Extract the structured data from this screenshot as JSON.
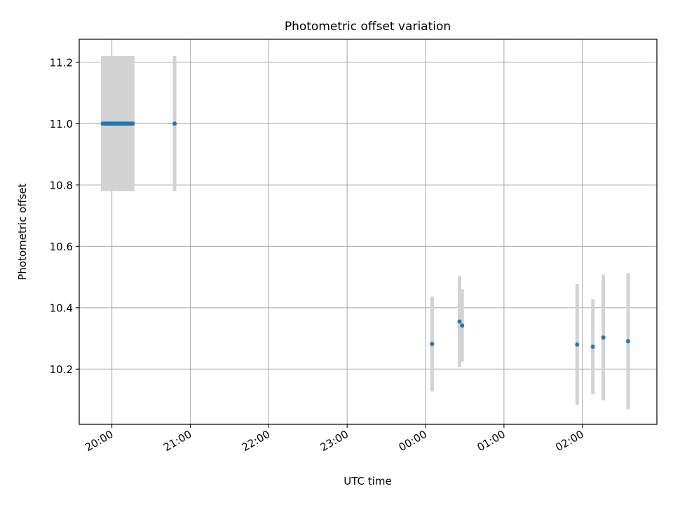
{
  "chart_data": {
    "type": "scatter",
    "title": "Photometric offset variation",
    "xlabel": "UTC time",
    "ylabel": "Photometric offset",
    "x_axis": "time",
    "xlim": [
      "19:35",
      "02:57"
    ],
    "ylim": [
      10.02,
      11.275
    ],
    "xticks": [
      "20:00",
      "21:00",
      "22:00",
      "23:00",
      "00:00",
      "01:00",
      "02:00"
    ],
    "yticks": [
      "10.2",
      "10.4",
      "10.6",
      "10.8",
      "11.0",
      "11.2"
    ],
    "grid": true,
    "colors": {
      "point": "#1f77b4",
      "errorbar": "#d3d3d3",
      "grid": "#b0b0b0",
      "frame": "#000000"
    },
    "points": [
      {
        "x": "19:53",
        "y": 11.0,
        "yerr": 0.22
      },
      {
        "x": "19:54",
        "y": 11.0,
        "yerr": 0.22
      },
      {
        "x": "19:55",
        "y": 11.0,
        "yerr": 0.22
      },
      {
        "x": "19:56",
        "y": 11.0,
        "yerr": 0.22
      },
      {
        "x": "19:57",
        "y": 11.0,
        "yerr": 0.22
      },
      {
        "x": "19:58",
        "y": 11.0,
        "yerr": 0.22
      },
      {
        "x": "19:59",
        "y": 11.0,
        "yerr": 0.22
      },
      {
        "x": "20:00",
        "y": 11.0,
        "yerr": 0.22
      },
      {
        "x": "20:01",
        "y": 11.0,
        "yerr": 0.22
      },
      {
        "x": "20:02",
        "y": 11.0,
        "yerr": 0.22
      },
      {
        "x": "20:03",
        "y": 11.0,
        "yerr": 0.22
      },
      {
        "x": "20:04",
        "y": 11.0,
        "yerr": 0.22
      },
      {
        "x": "20:05",
        "y": 11.0,
        "yerr": 0.22
      },
      {
        "x": "20:06",
        "y": 11.0,
        "yerr": 0.22
      },
      {
        "x": "20:07",
        "y": 11.0,
        "yerr": 0.22
      },
      {
        "x": "20:08",
        "y": 11.0,
        "yerr": 0.22
      },
      {
        "x": "20:09",
        "y": 11.0,
        "yerr": 0.22
      },
      {
        "x": "20:10",
        "y": 11.0,
        "yerr": 0.22
      },
      {
        "x": "20:11",
        "y": 11.0,
        "yerr": 0.22
      },
      {
        "x": "20:12",
        "y": 11.0,
        "yerr": 0.22
      },
      {
        "x": "20:13",
        "y": 11.0,
        "yerr": 0.22
      },
      {
        "x": "20:14",
        "y": 11.0,
        "yerr": 0.22
      },
      {
        "x": "20:15",
        "y": 11.0,
        "yerr": 0.22
      },
      {
        "x": "20:16",
        "y": 11.0,
        "yerr": 0.22
      },
      {
        "x": "20:48",
        "y": 11.0,
        "yerr": 0.22
      },
      {
        "x": "00:05",
        "y": 10.282,
        "yerr": 0.155
      },
      {
        "x": "00:26",
        "y": 10.355,
        "yerr": 0.148
      },
      {
        "x": "00:28",
        "y": 10.342,
        "yerr": 0.118
      },
      {
        "x": "01:56",
        "y": 10.28,
        "yerr": 0.197
      },
      {
        "x": "02:08",
        "y": 10.273,
        "yerr": 0.155
      },
      {
        "x": "02:16",
        "y": 10.303,
        "yerr": 0.205
      },
      {
        "x": "02:35",
        "y": 10.291,
        "yerr": 0.222
      }
    ]
  }
}
